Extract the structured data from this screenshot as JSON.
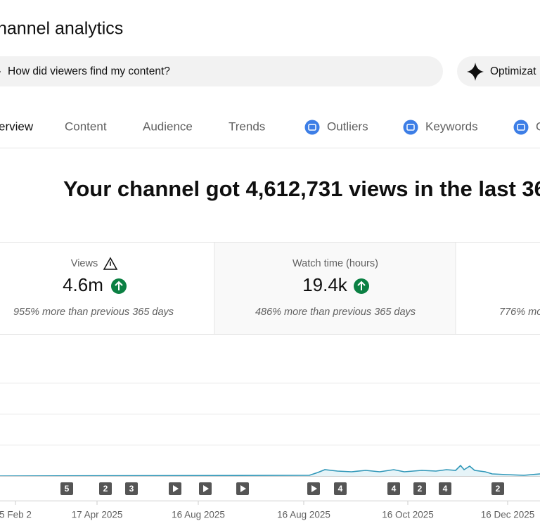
{
  "header": {
    "title": "hannel analytics"
  },
  "search": {
    "placeholder": "How did viewers find my content?"
  },
  "button": {
    "label": "Optimizat"
  },
  "tabs": [
    "erview",
    "Content",
    "Audience",
    "Trends",
    "Outliers",
    "Keywords",
    "C"
  ],
  "headline": "Your channel got 4,612,731 views in the last 36",
  "cards": [
    {
      "label": "Views",
      "value": "4.6m",
      "comparison": "955% more than previous 365 days"
    },
    {
      "label": "Watch time (hours)",
      "value": "19.4k",
      "comparison": "486% more than previous 365 days"
    },
    {
      "comparison": "776% mo"
    }
  ],
  "chart": {
    "markers": [
      "5",
      "2",
      "3",
      "4",
      "4",
      "2",
      "4",
      "2"
    ],
    "x_labels": [
      "5 Feb 2",
      "17 Apr 2025",
      "16 Aug 2025",
      "16 Aug 2025",
      "16 Oct 2025",
      "16 Dec 2025"
    ]
  }
}
